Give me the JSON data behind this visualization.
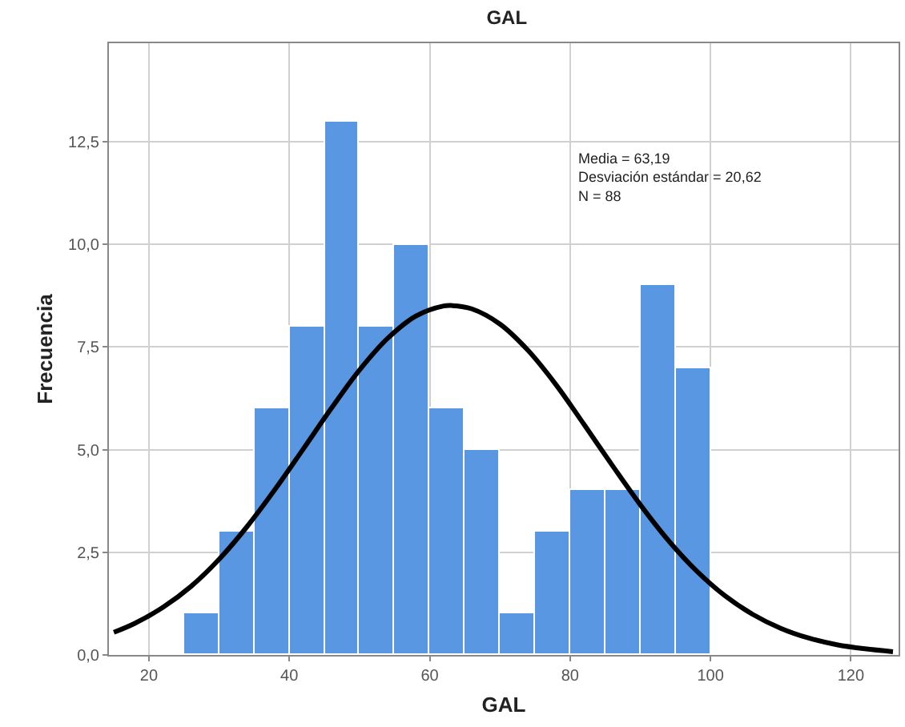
{
  "chart_data": {
    "type": "histogram",
    "title": "GAL",
    "xlabel": "GAL",
    "ylabel": "Frecuencia",
    "bins": [
      25,
      30,
      35,
      40,
      45,
      50,
      55,
      60,
      65,
      70,
      75,
      80,
      85,
      90,
      95,
      100
    ],
    "values": [
      1,
      3,
      6,
      8,
      13,
      8,
      10,
      6,
      5,
      1,
      3,
      4,
      4,
      9,
      7
    ],
    "color": "#5a97e3",
    "series": [
      {
        "type": "line",
        "color": "#000000",
        "x": [
          15,
          18,
          22,
          26,
          30,
          34,
          38,
          42,
          46,
          50,
          54,
          58,
          62,
          63.19,
          66,
          70,
          74,
          78,
          82,
          86,
          90,
          94,
          98,
          102,
          106,
          110,
          114,
          118,
          122,
          126
        ],
        "values": [
          0.55,
          0.77,
          1.16,
          1.67,
          2.33,
          3.13,
          4.04,
          5.02,
          6.01,
          6.94,
          7.71,
          8.25,
          8.5,
          8.51,
          8.43,
          8.06,
          7.42,
          6.58,
          5.61,
          4.62,
          3.66,
          2.79,
          2.05,
          1.45,
          0.99,
          0.65,
          0.41,
          0.25,
          0.15,
          0.08
        ]
      }
    ],
    "xlim": [
      14.3,
      126.8
    ],
    "xticks": [
      20,
      40,
      60,
      80,
      100,
      120
    ],
    "ylim": [
      0,
      14.9
    ],
    "yticks": [
      {
        "value": 0,
        "label": "0,0"
      },
      {
        "value": 2.5,
        "label": "2,5"
      },
      {
        "value": 5,
        "label": "5,0"
      },
      {
        "value": 7.5,
        "label": "7,5"
      },
      {
        "value": 10,
        "label": "10,0"
      },
      {
        "value": 12.5,
        "label": "12,5"
      }
    ],
    "grid": true,
    "annotations": [
      "Media = 63,19\nDesviación estándar = 20,62\nN = 88"
    ]
  }
}
